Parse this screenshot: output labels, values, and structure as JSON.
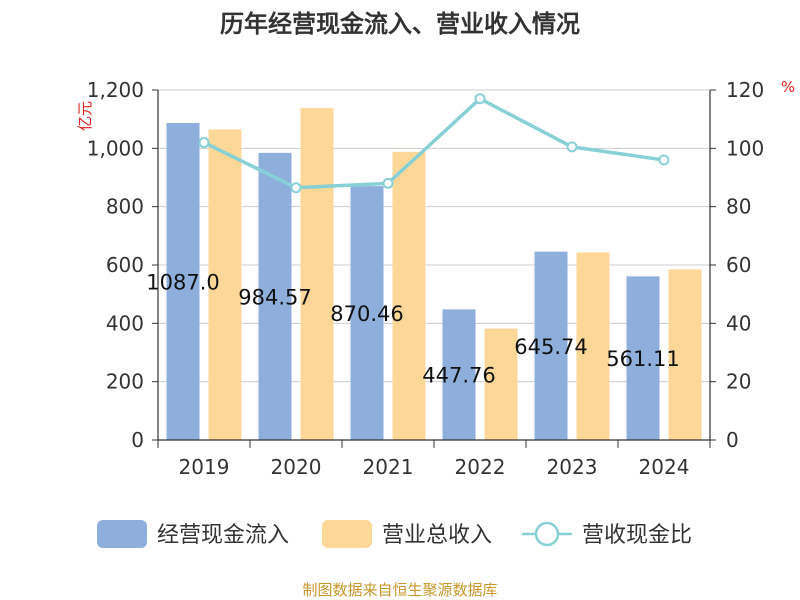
{
  "chart_data": {
    "type": "bar",
    "title": "历年经营现金流入、营业收入情况",
    "categories": [
      "2019",
      "2020",
      "2021",
      "2022",
      "2023",
      "2024"
    ],
    "series": [
      {
        "name": "经营现金流入",
        "axis": "left",
        "kind": "bar",
        "color": "#8eaedb",
        "values": [
          1087.0,
          984.57,
          870.46,
          447.76,
          645.74,
          561.11
        ],
        "data_labels": [
          "1087.0",
          "984.57",
          "870.46",
          "447.76",
          "645.74",
          "561.11"
        ]
      },
      {
        "name": "营业总收入",
        "axis": "left",
        "kind": "bar",
        "color": "#fdd797",
        "values": [
          1065,
          1138,
          988,
          382,
          643,
          585
        ]
      },
      {
        "name": "营收现金比",
        "axis": "right",
        "kind": "line",
        "color": "#86d0d6",
        "values": [
          102,
          86.5,
          88,
          117,
          100.5,
          96
        ]
      }
    ],
    "y_left": {
      "unit_label": "亿元",
      "min": 0,
      "max": 1200,
      "ticks": [
        "0",
        "200",
        "400",
        "600",
        "800",
        "1,000",
        "1,200"
      ]
    },
    "y_right": {
      "unit_label": "%",
      "min": 0,
      "max": 120,
      "ticks": [
        "0",
        "20",
        "40",
        "60",
        "80",
        "100",
        "120"
      ]
    },
    "grid": true,
    "legend_position": "bottom"
  },
  "source_note": "制图数据来自恒生聚源数据库"
}
